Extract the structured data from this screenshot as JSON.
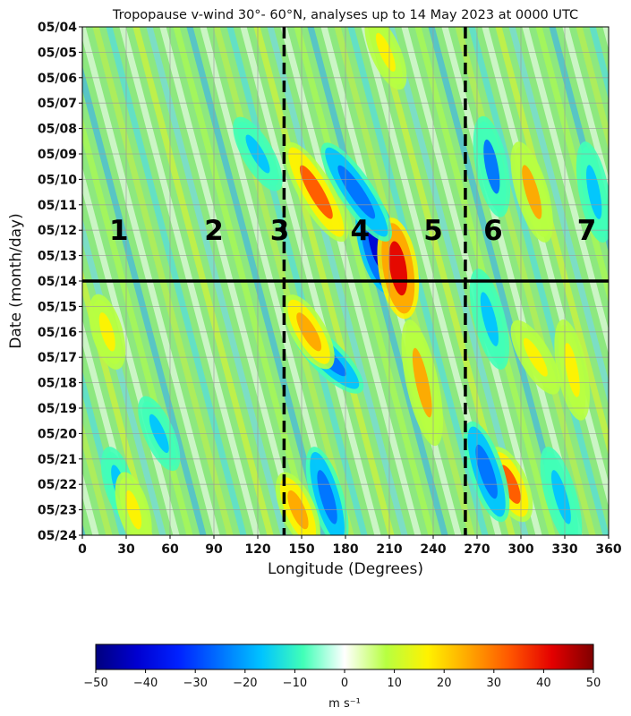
{
  "chart_data": {
    "type": "heatmap",
    "title": "Tropopause v-wind 30°- 60°N, analyses up to 14 May 2023 at 0000 UTC",
    "xlabel": "Longitude (Degrees)",
    "ylabel": "Date (month/day)",
    "x_ticks": [
      "0",
      "30",
      "60",
      "90",
      "120",
      "150",
      "180",
      "210",
      "240",
      "270",
      "300",
      "330",
      "360"
    ],
    "x_tick_values": [
      0,
      30,
      60,
      90,
      120,
      150,
      180,
      210,
      240,
      270,
      300,
      330,
      360
    ],
    "xlim": [
      0,
      360
    ],
    "y_ticks": [
      "05/04",
      "05/05",
      "05/06",
      "05/07",
      "05/08",
      "05/09",
      "05/10",
      "05/11",
      "05/12",
      "05/13",
      "05/14",
      "05/15",
      "05/16",
      "05/17",
      "05/18",
      "05/19",
      "05/20",
      "05/21",
      "05/22",
      "05/23",
      "05/24"
    ],
    "ylim": [
      "05/04",
      "05/24"
    ],
    "grid": true,
    "analysis_line_date": "05/14",
    "vertical_dashed_lines_longitude": [
      138,
      262
    ],
    "region_labels": [
      {
        "text": "1",
        "longitude": 25
      },
      {
        "text": "2",
        "longitude": 90
      },
      {
        "text": "3",
        "longitude": 135
      },
      {
        "text": "4",
        "longitude": 190
      },
      {
        "text": "5",
        "longitude": 240
      },
      {
        "text": "6",
        "longitude": 281
      },
      {
        "text": "7",
        "longitude": 345
      }
    ],
    "region_label_date": "05/12",
    "features": [
      {
        "sign": "negative",
        "peak": -42,
        "lon_start": 196,
        "date_start": "05/11",
        "lon_end": 208,
        "date_end": "05/14"
      },
      {
        "sign": "positive",
        "peak": 44,
        "lon_start": 212,
        "date_start": "05/12",
        "lon_end": 220,
        "date_end": "05/15"
      },
      {
        "sign": "positive",
        "peak": 30,
        "lon_start": 145,
        "date_start": "05/09",
        "lon_end": 175,
        "date_end": "05/12"
      },
      {
        "sign": "negative",
        "peak": -28,
        "lon_start": 170,
        "date_start": "05/09",
        "lon_end": 205,
        "date_end": "05/12"
      },
      {
        "sign": "negative",
        "peak": -26,
        "lon_start": 150,
        "date_start": "05/16",
        "lon_end": 185,
        "date_end": "05/18"
      },
      {
        "sign": "positive",
        "peak": 28,
        "lon_start": 145,
        "date_start": "05/15",
        "lon_end": 165,
        "date_end": "05/17"
      },
      {
        "sign": "positive",
        "peak": 22,
        "lon_start": 225,
        "date_start": "05/16",
        "lon_end": 240,
        "date_end": "05/20"
      },
      {
        "sign": "negative",
        "peak": -22,
        "lon_start": 275,
        "date_start": "05/08",
        "lon_end": 285,
        "date_end": "05/11"
      },
      {
        "sign": "negative",
        "peak": -20,
        "lon_start": 272,
        "date_start": "05/14",
        "lon_end": 285,
        "date_end": "05/17"
      },
      {
        "sign": "positive",
        "peak": 22,
        "lon_start": 300,
        "date_start": "05/09",
        "lon_end": 315,
        "date_end": "05/12"
      },
      {
        "sign": "positive",
        "peak": 33,
        "lon_start": 285,
        "date_start": "05/21",
        "lon_end": 300,
        "date_end": "05/23"
      },
      {
        "sign": "negative",
        "peak": -28,
        "lon_start": 268,
        "date_start": "05/20",
        "lon_end": 285,
        "date_end": "05/23"
      },
      {
        "sign": "negative",
        "peak": -24,
        "lon_start": 160,
        "date_start": "05/21",
        "lon_end": 175,
        "date_end": "05/24"
      },
      {
        "sign": "positive",
        "peak": 28,
        "lon_start": 140,
        "date_start": "05/22",
        "lon_end": 155,
        "date_end": "05/24"
      },
      {
        "sign": "negative",
        "peak": -20,
        "lon_start": 320,
        "date_start": "05/21",
        "lon_end": 335,
        "date_end": "05/24"
      },
      {
        "sign": "positive",
        "peak": 18,
        "lon_start": 12,
        "date_start": "05/15",
        "lon_end": 22,
        "date_end": "05/17"
      },
      {
        "sign": "negative",
        "peak": -18,
        "lon_start": 110,
        "date_start": "05/08",
        "lon_end": 130,
        "date_end": "05/10"
      },
      {
        "sign": "positive",
        "peak": 15,
        "lon_start": 200,
        "date_start": "05/04",
        "lon_end": 215,
        "date_end": "05/06"
      },
      {
        "sign": "negative",
        "peak": -15,
        "lon_start": 45,
        "date_start": "05/19",
        "lon_end": 60,
        "date_end": "05/21"
      },
      {
        "sign": "negative",
        "peak": -14,
        "lon_start": 20,
        "date_start": "05/21",
        "lon_end": 30,
        "date_end": "05/23"
      },
      {
        "sign": "positive",
        "peak": 18,
        "lon_start": 30,
        "date_start": "05/22",
        "lon_end": 40,
        "date_end": "05/24"
      },
      {
        "sign": "positive",
        "peak": 16,
        "lon_start": 330,
        "date_start": "05/16",
        "lon_end": 340,
        "date_end": "05/19"
      },
      {
        "sign": "negative",
        "peak": -16,
        "lon_start": 345,
        "date_start": "05/09",
        "lon_end": 355,
        "date_end": "05/12"
      },
      {
        "sign": "positive",
        "peak": 18,
        "lon_start": 300,
        "date_start": "05/16",
        "lon_end": 320,
        "date_end": "05/18"
      }
    ],
    "colorbar": {
      "ticks": [
        "−50",
        "−40",
        "−30",
        "−20",
        "−10",
        "0",
        "10",
        "20",
        "30",
        "40",
        "50"
      ],
      "min": -50,
      "max": 50,
      "unit": "m s⁻¹",
      "colors": [
        "#00007f",
        "#0000d1",
        "#0022ff",
        "#0072ff",
        "#00c4ff",
        "#41ffb7",
        "#ffffff",
        "#b7ff41",
        "#fff200",
        "#ffa600",
        "#ff5500",
        "#e40000",
        "#7f0000"
      ]
    }
  }
}
